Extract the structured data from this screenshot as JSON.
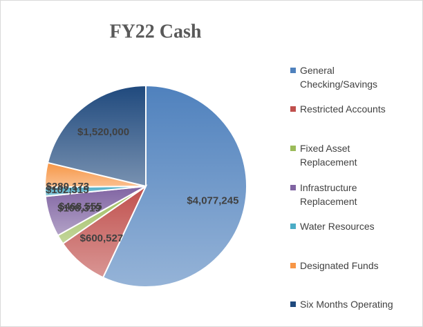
{
  "chart_data": {
    "type": "pie",
    "title": "FY22 Cash",
    "categories": [
      "General Checking/Savings",
      "Restricted Accounts",
      "Fixed Asset Replacement",
      "Infrastructure Replacement",
      "Water Resources",
      "Designated Funds",
      "Six Months Operating"
    ],
    "values": [
      4077245,
      600527,
      108319,
      468555,
      102315,
      280173,
      1520000
    ],
    "value_labels": [
      "$4,077,245",
      "$600,527",
      "$108,319",
      "$468,555",
      "$102,315",
      "$280,173",
      "$1,520,000"
    ],
    "colors": [
      "#4f81bd",
      "#c0504d",
      "#9bbb59",
      "#8064a2",
      "#4bacc6",
      "#f79646",
      "#1f497d"
    ],
    "legend": "right"
  }
}
